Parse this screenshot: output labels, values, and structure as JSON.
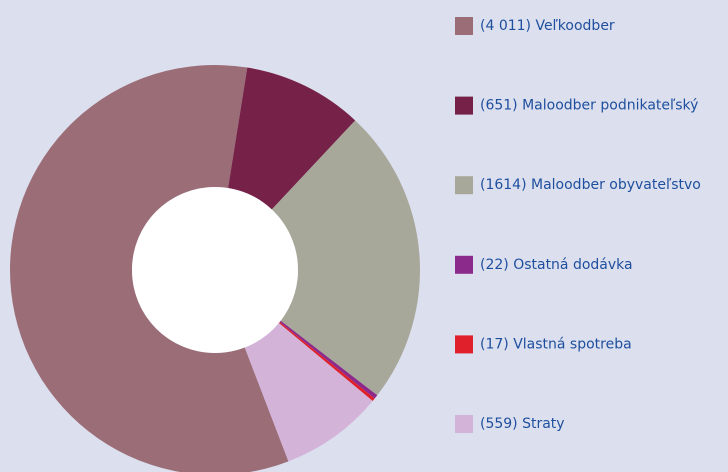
{
  "chart_data": {
    "type": "donut",
    "categories": [
      "(4 011) Veľkoodber",
      "(651) Maloodber podnikateľský",
      "(1614) Maloodber obyvateľstvo",
      "(22) Ostatná dodávka",
      "(17) Vlastná spotreba",
      "(559) Straty"
    ],
    "values": [
      4011,
      651,
      1614,
      22,
      17,
      559
    ],
    "colors": [
      "#9b6d77",
      "#762248",
      "#a8a89a",
      "#8b2a8b",
      "#e0202a",
      "#d4b3d9"
    ],
    "legend": "right"
  }
}
